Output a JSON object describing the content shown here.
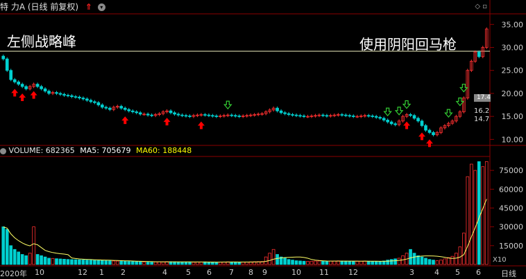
{
  "price_panel": {
    "title": "特 力A (日线 前复权)",
    "arrow_label": "⇑",
    "menu_glyph": "▾",
    "corner_glyphs": "◇ ▫",
    "annotation_left": "左侧战略峰",
    "annotation_right": "使用阴阳回马枪",
    "y_ticks": [
      "35.00",
      "30.00",
      "25.00",
      "20.00",
      "15.00",
      "10.00"
    ],
    "side_badges": [
      "17.4",
      "16.2",
      "14.7"
    ]
  },
  "volume_panel": {
    "label": "VOLUME: 682365",
    "ma5": "MA5: 705679",
    "ma60": "MA60: 188448",
    "y_ticks": [
      "75000",
      "60000",
      "45000",
      "30000",
      "15000"
    ],
    "unit": "X10"
  },
  "time_axis": {
    "labels": [
      "2020年",
      "10",
      "12",
      "1",
      "2",
      "4",
      "5",
      "6",
      "7",
      "8",
      "9",
      "10",
      "11",
      "12",
      "3",
      "4",
      "5",
      "6"
    ],
    "period": "日线"
  },
  "colors": {
    "up": "#ff3030",
    "down": "#00d0d0",
    "ma": "#ffff66",
    "accent_arrow_up": "#ff0000",
    "accent_arrow_down": "#33cc33"
  },
  "chart_data": {
    "type": "candlestick",
    "y_range": [
      9,
      37
    ],
    "close": [
      27.5,
      25,
      23,
      22.5,
      22,
      21.5,
      21,
      21.5,
      22,
      21.5,
      21,
      20.5,
      20,
      20.2,
      20,
      19.8,
      19.6,
      19.5,
      19.3,
      19.2,
      19,
      18.8,
      18.5,
      18.2,
      18,
      17.5,
      17,
      16.8,
      16.5,
      17,
      17.2,
      16.8,
      16.5,
      16.2,
      16,
      15.8,
      15.5,
      15.5,
      15.3,
      15.2,
      15.4,
      15.6,
      16,
      16.2,
      15.8,
      15.5,
      15.3,
      15.2,
      15.1,
      15,
      15.2,
      15.3,
      15.4,
      15.3,
      15.2,
      15.1,
      15,
      15.1,
      15.2,
      15.3,
      15.2,
      15.1,
      15,
      15.1,
      15.2,
      15.3,
      15.4,
      15.5,
      15.6,
      16,
      16.4,
      16.8,
      16.2,
      15.8,
      15.6,
      15.4,
      15.3,
      15.2,
      15.1,
      15,
      15,
      15.1,
      15.2,
      15.3,
      15.2,
      15.1,
      15.2,
      15.3,
      15.4,
      15.3,
      15.2,
      15.1,
      15,
      15,
      15.1,
      15.2,
      15.1,
      15,
      14.8,
      14.6,
      14.2,
      13.8,
      13.4,
      13.2,
      14,
      15,
      15.4,
      15.2,
      14.6,
      14,
      13,
      12,
      11.5,
      11,
      11.5,
      12.5,
      13,
      13.5,
      14,
      15,
      16,
      19,
      25,
      27,
      29,
      28,
      30,
      34
    ],
    "volume": [
      30000,
      28000,
      15000,
      12000,
      10000,
      8000,
      7000,
      9000,
      30000,
      8000,
      7000,
      6000,
      5000,
      4800,
      4600,
      4400,
      4200,
      4000,
      3900,
      3800,
      3700,
      3600,
      3500,
      3400,
      3300,
      3200,
      3100,
      3000,
      2900,
      2800,
      2700,
      2600,
      2500,
      2400,
      2300,
      2200,
      2100,
      2000,
      1900,
      1800,
      2000,
      2100,
      2200,
      2300,
      2200,
      2100,
      2000,
      1900,
      1800,
      1700,
      1800,
      1900,
      2000,
      2100,
      2000,
      1900,
      1800,
      1900,
      2000,
      2100,
      2000,
      1900,
      1800,
      1900,
      2000,
      2100,
      2200,
      2300,
      2400,
      6000,
      9000,
      12000,
      8000,
      6000,
      5000,
      4000,
      3500,
      3000,
      2800,
      2600,
      2500,
      2600,
      2700,
      2800,
      2700,
      2600,
      2700,
      2800,
      2900,
      2800,
      2700,
      2600,
      2500,
      2500,
      2600,
      2700,
      2600,
      2500,
      2400,
      2300,
      2800,
      3500,
      4000,
      4500,
      5000,
      7000,
      9000,
      12000,
      9000,
      7000,
      6000,
      5000,
      4000,
      3500,
      3000,
      3500,
      4500,
      5500,
      6500,
      9000,
      14000,
      25000,
      70000,
      80000,
      75000,
      82000,
      78000,
      82000
    ]
  }
}
